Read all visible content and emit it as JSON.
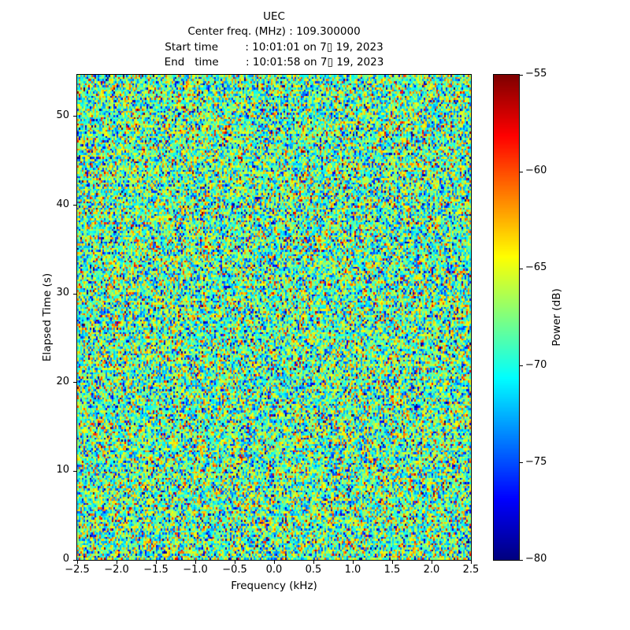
{
  "figure": {
    "background": "#ffffff",
    "text_color": "#000000"
  },
  "chart_data": {
    "type": "heatmap",
    "title_lines": [
      "UEC",
      "Center freq. (MHz) : 109.300000",
      "Start time        : 10:01:01 on 7▯ 19, 2023",
      "End   time        : 10:01:58 on 7▯ 19, 2023"
    ],
    "xlabel": "Frequency (kHz)",
    "ylabel": "Elapsed Time (s)",
    "xlim": [
      -2.5,
      2.5
    ],
    "ylim": [
      0,
      54.7
    ],
    "grid": false,
    "x_ticks": [
      {
        "value": -2.5,
        "label": "−2.5"
      },
      {
        "value": -2.0,
        "label": "−2.0"
      },
      {
        "value": -1.5,
        "label": "−1.5"
      },
      {
        "value": -1.0,
        "label": "−1.0"
      },
      {
        "value": -0.5,
        "label": "−0.5"
      },
      {
        "value": 0.0,
        "label": "0.0"
      },
      {
        "value": 0.5,
        "label": "0.5"
      },
      {
        "value": 1.0,
        "label": "1.0"
      },
      {
        "value": 1.5,
        "label": "1.5"
      },
      {
        "value": 2.0,
        "label": "2.0"
      },
      {
        "value": 2.5,
        "label": "2.5"
      }
    ],
    "y_ticks": [
      {
        "value": 0,
        "label": "0"
      },
      {
        "value": 10,
        "label": "10"
      },
      {
        "value": 20,
        "label": "20"
      },
      {
        "value": 30,
        "label": "30"
      },
      {
        "value": 40,
        "label": "40"
      },
      {
        "value": 50,
        "label": "50"
      }
    ],
    "colorbar": {
      "label": "Power (dB)",
      "position": "right",
      "range": [
        -80,
        -55
      ],
      "colormap": "jet",
      "ticks": [
        {
          "value": -80,
          "label": "−80"
        },
        {
          "value": -75,
          "label": "−75"
        },
        {
          "value": -70,
          "label": "−70"
        },
        {
          "value": -65,
          "label": "−65"
        },
        {
          "value": -60,
          "label": "−60"
        },
        {
          "value": -55,
          "label": "−55"
        }
      ]
    },
    "noise_field": {
      "rows": 230,
      "cols": 250,
      "mean_db": -68.3,
      "std_db": 4.6,
      "seed": 20230719
    }
  }
}
